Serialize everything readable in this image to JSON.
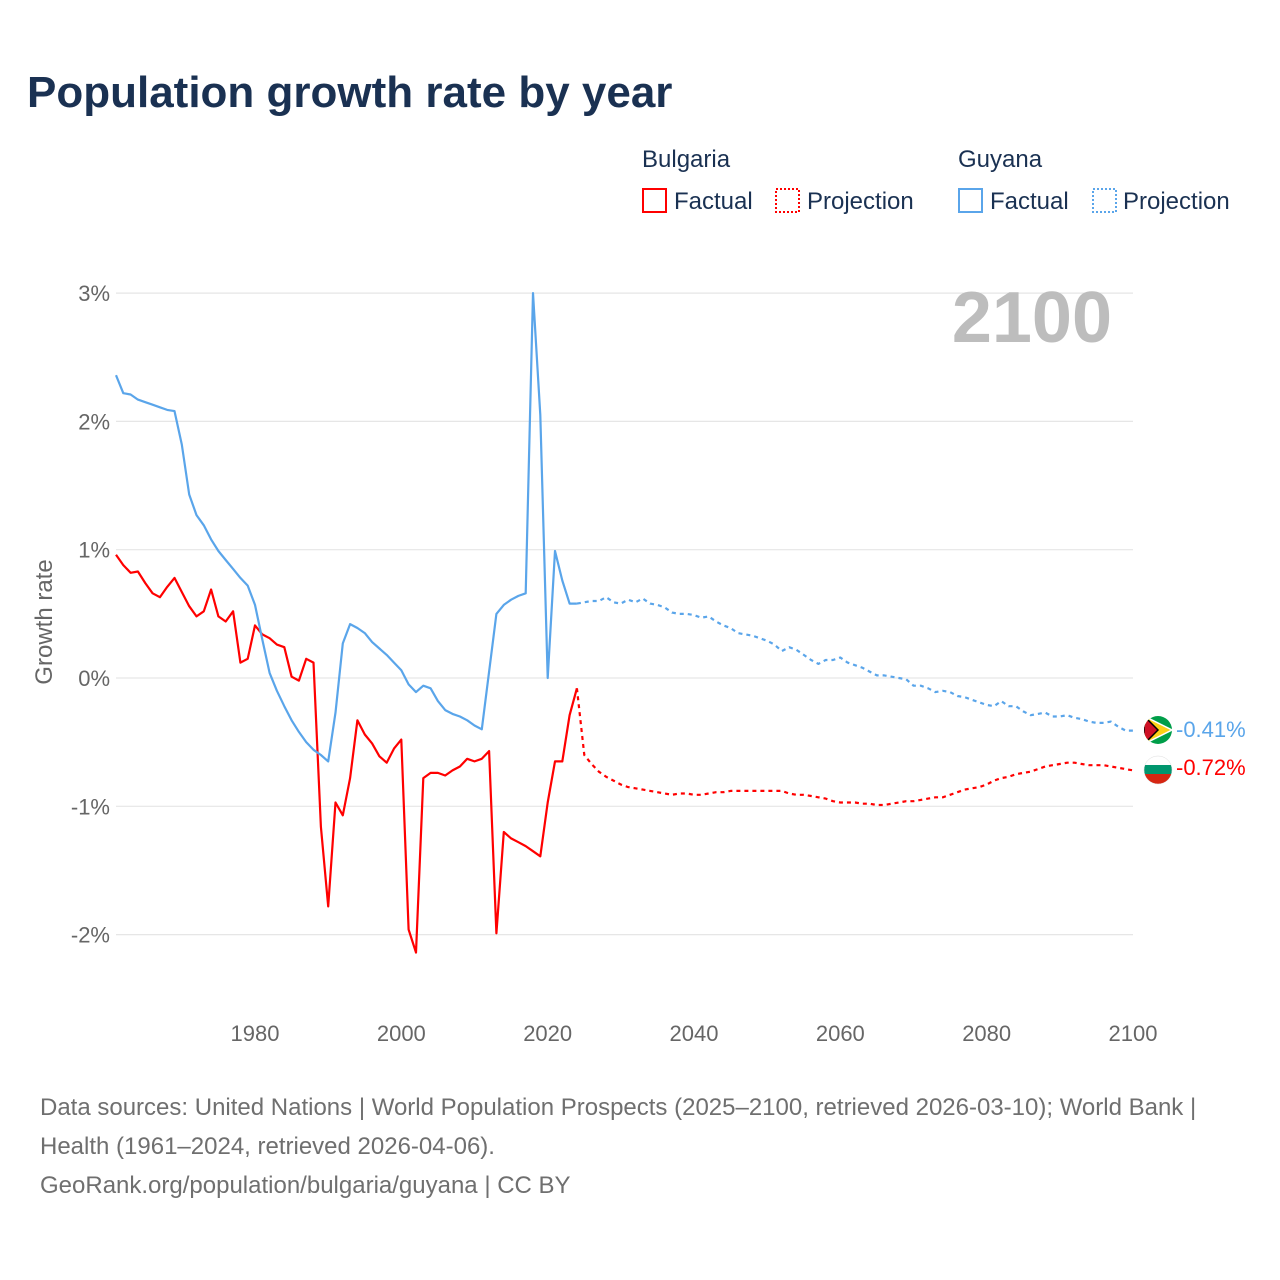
{
  "title": "Population growth rate by year",
  "legend": {
    "groups": [
      {
        "name": "Bulgaria",
        "factual": "Factual",
        "projection": "Projection",
        "color": "#ff0000"
      },
      {
        "name": "Guyana",
        "factual": "Factual",
        "projection": "Projection",
        "color": "#5aa5ea"
      }
    ]
  },
  "year_label": "2100",
  "end_labels": {
    "guyana": "-0.41%",
    "bulgaria": "-0.72%"
  },
  "sources": {
    "line1": "Data sources: United Nations | World Population Prospects (2025–2100, retrieved 2026-03-10); World Bank | Health (1961–2024, retrieved 2026-04-06).",
    "line2": "GeoRank.org/population/bulgaria/guyana | CC BY"
  },
  "chart_data": {
    "type": "line",
    "title": "Population growth rate by year",
    "xlabel": "",
    "ylabel": "Growth rate",
    "xlim": [
      1961,
      2100
    ],
    "ylim": [
      -2.5,
      3
    ],
    "x_ticks": [
      "1980",
      "2000",
      "2020",
      "2040",
      "2060",
      "2080",
      "2100"
    ],
    "y_ticks": [
      {
        "v": 3,
        "label": "3%"
      },
      {
        "v": 2,
        "label": "2%"
      },
      {
        "v": 1,
        "label": "1%"
      },
      {
        "v": 0,
        "label": "0%"
      },
      {
        "v": -1,
        "label": "-1%"
      },
      {
        "v": -2,
        "label": "-2%"
      }
    ],
    "grid": true,
    "legend_position": "top-right",
    "series": [
      {
        "name": "Bulgaria Factual",
        "color": "#ff0000",
        "dashed": false,
        "start_year": 1961,
        "values": [
          0.96,
          0.88,
          0.82,
          0.83,
          0.74,
          0.66,
          0.63,
          0.71,
          0.78,
          0.67,
          0.56,
          0.48,
          0.52,
          0.69,
          0.48,
          0.44,
          0.52,
          0.12,
          0.15,
          0.41,
          0.34,
          0.31,
          0.26,
          0.24,
          0.01,
          -0.02,
          0.15,
          0.12,
          -1.16,
          -1.78,
          -0.97,
          -1.07,
          -0.78,
          -0.33,
          -0.44,
          -0.51,
          -0.61,
          -0.66,
          -0.55,
          -0.48,
          -1.96,
          -2.14,
          -0.78,
          -0.74,
          -0.74,
          -0.76,
          -0.72,
          -0.69,
          -0.63,
          -0.65,
          -0.63,
          -0.57,
          -1.99,
          -1.2,
          -1.25,
          -1.28,
          -1.31,
          -1.35,
          -1.39,
          -0.97,
          -0.65,
          -0.65,
          -0.29,
          -0.08
        ]
      },
      {
        "name": "Bulgaria Projection",
        "color": "#ff0000",
        "dashed": true,
        "start_year": 2024,
        "values": [
          -0.08,
          -0.6,
          -0.67,
          -0.73,
          -0.77,
          -0.8,
          -0.83,
          -0.85,
          -0.86,
          -0.87,
          -0.88,
          -0.89,
          -0.9,
          -0.91,
          -0.9,
          -0.9,
          -0.91,
          -0.91,
          -0.9,
          -0.89,
          -0.89,
          -0.88,
          -0.88,
          -0.88,
          -0.88,
          -0.88,
          -0.88,
          -0.88,
          -0.88,
          -0.9,
          -0.91,
          -0.91,
          -0.92,
          -0.93,
          -0.94,
          -0.96,
          -0.97,
          -0.97,
          -0.97,
          -0.98,
          -0.98,
          -0.99,
          -0.99,
          -0.98,
          -0.97,
          -0.96,
          -0.96,
          -0.95,
          -0.94,
          -0.93,
          -0.93,
          -0.91,
          -0.89,
          -0.87,
          -0.86,
          -0.85,
          -0.83,
          -0.8,
          -0.78,
          -0.77,
          -0.75,
          -0.74,
          -0.73,
          -0.71,
          -0.69,
          -0.68,
          -0.67,
          -0.66,
          -0.66,
          -0.67,
          -0.68,
          -0.68,
          -0.68,
          -0.69,
          -0.7,
          -0.71,
          -0.72
        ]
      },
      {
        "name": "Guyana Factual",
        "color": "#5aa5ea",
        "dashed": false,
        "start_year": 1961,
        "values": [
          2.36,
          2.22,
          2.21,
          2.17,
          2.15,
          2.13,
          2.11,
          2.09,
          2.08,
          1.82,
          1.43,
          1.27,
          1.19,
          1.08,
          0.99,
          0.92,
          0.85,
          0.78,
          0.72,
          0.57,
          0.3,
          0.04,
          -0.1,
          -0.22,
          -0.33,
          -0.42,
          -0.5,
          -0.56,
          -0.6,
          -0.65,
          -0.27,
          0.27,
          0.42,
          0.39,
          0.35,
          0.28,
          0.23,
          0.18,
          0.12,
          0.06,
          -0.05,
          -0.11,
          -0.06,
          -0.08,
          -0.18,
          -0.25,
          -0.28,
          -0.3,
          -0.33,
          -0.37,
          -0.4,
          0.05,
          0.5,
          0.57,
          0.61,
          0.64,
          0.66,
          3.0,
          2.05,
          0.0,
          0.99,
          0.76,
          0.58,
          0.58
        ]
      },
      {
        "name": "Guyana Projection",
        "color": "#5aa5ea",
        "dashed": true,
        "start_year": 2024,
        "values": [
          0.58,
          0.59,
          0.6,
          0.6,
          0.63,
          0.59,
          0.58,
          0.61,
          0.59,
          0.62,
          0.58,
          0.57,
          0.55,
          0.51,
          0.5,
          0.5,
          0.49,
          0.47,
          0.48,
          0.44,
          0.41,
          0.39,
          0.35,
          0.34,
          0.33,
          0.31,
          0.29,
          0.26,
          0.21,
          0.24,
          0.22,
          0.18,
          0.14,
          0.11,
          0.14,
          0.14,
          0.16,
          0.12,
          0.1,
          0.08,
          0.05,
          0.02,
          0.02,
          0.01,
          0.0,
          -0.01,
          -0.06,
          -0.06,
          -0.08,
          -0.11,
          -0.1,
          -0.11,
          -0.14,
          -0.15,
          -0.17,
          -0.19,
          -0.21,
          -0.22,
          -0.18,
          -0.22,
          -0.22,
          -0.26,
          -0.29,
          -0.28,
          -0.27,
          -0.3,
          -0.3,
          -0.29,
          -0.31,
          -0.32,
          -0.34,
          -0.35,
          -0.35,
          -0.34,
          -0.38,
          -0.41,
          -0.41
        ]
      }
    ]
  }
}
